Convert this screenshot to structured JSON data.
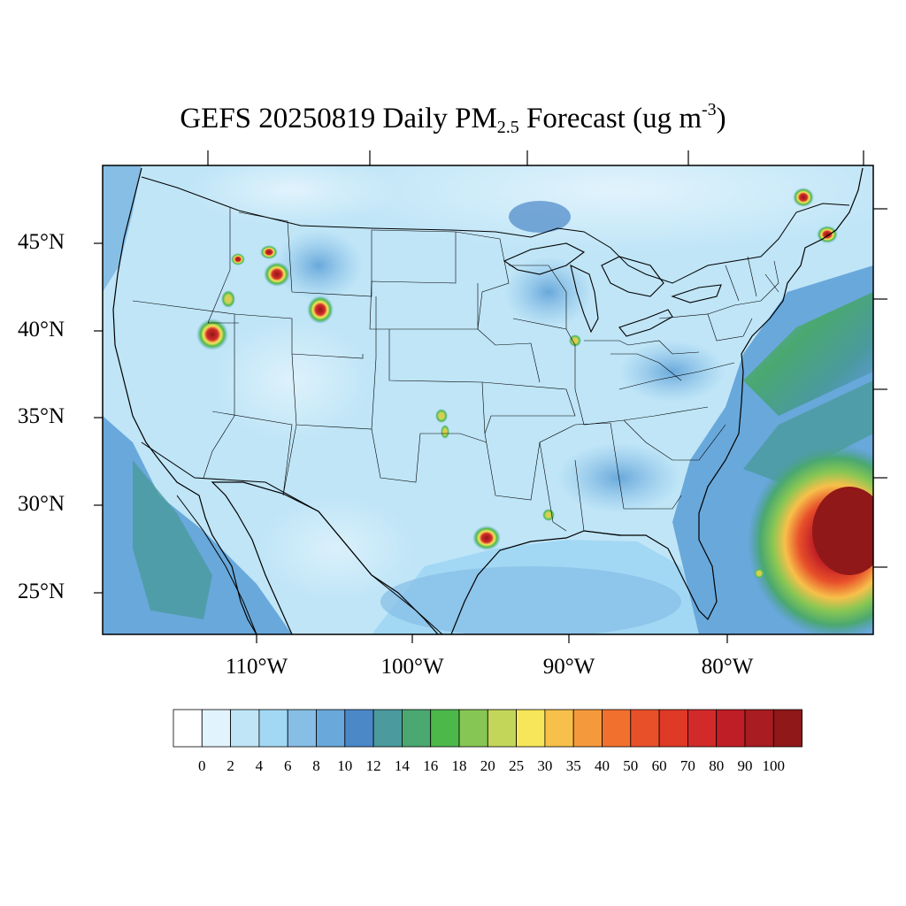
{
  "title": {
    "prefix": "GEFS 20250819 Daily PM",
    "sub": "2.5",
    "middle": " Forecast (ug m",
    "sup": "-3",
    "suffix": ")"
  },
  "lat_labels": [
    "45°N",
    "40°N",
    "35°N",
    "30°N",
    "25°N"
  ],
  "lon_labels": [
    "110°W",
    "100°W",
    "90°W",
    "80°W"
  ],
  "colorbar": {
    "labels": [
      "0",
      "2",
      "4",
      "6",
      "8",
      "10",
      "12",
      "14",
      "16",
      "18",
      "20",
      "25",
      "30",
      "35",
      "40",
      "50",
      "60",
      "70",
      "80",
      "90",
      "100"
    ],
    "colors": [
      "#ffffff",
      "#e1f3fc",
      "#bfe5f7",
      "#a2d8f4",
      "#86bee6",
      "#69a8db",
      "#4a88c8",
      "#4a9a9e",
      "#4aa870",
      "#4cb84a",
      "#86c654",
      "#c4d65a",
      "#f7e65a",
      "#f7c04a",
      "#f59a3c",
      "#f2702e",
      "#e8502a",
      "#de3a26",
      "#d22a2a",
      "#c01e26",
      "#a81c22",
      "#901818"
    ]
  }
}
